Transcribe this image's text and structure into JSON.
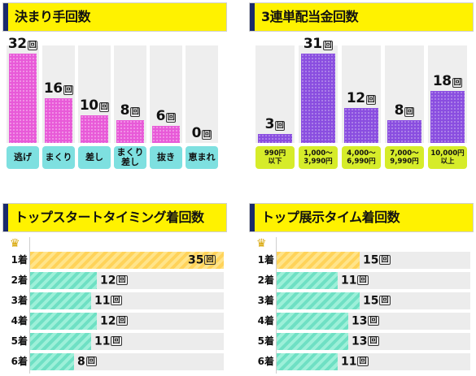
{
  "unit": "回",
  "kimarite": {
    "title": "決まり手回数",
    "items": [
      {
        "label": "逃げ",
        "value": "32",
        "num": 32
      },
      {
        "label": "まくり",
        "value": "16",
        "num": 16
      },
      {
        "label": "差し",
        "value": "10",
        "num": 10
      },
      {
        "label": "まくり\n差し",
        "value": "8",
        "num": 8
      },
      {
        "label": "抜き",
        "value": "6",
        "num": 6
      },
      {
        "label": "恵まれ",
        "value": "0",
        "num": 0
      }
    ]
  },
  "sanrentan": {
    "title": "3連単配当金回数",
    "items": [
      {
        "label": "990円\n以下",
        "value": "3",
        "num": 3
      },
      {
        "label": "1,000～\n3,990円",
        "value": "31",
        "num": 31
      },
      {
        "label": "4,000～\n6,990円",
        "value": "12",
        "num": 12
      },
      {
        "label": "7,000～\n9,990円",
        "value": "8",
        "num": 8
      },
      {
        "label": "10,000円\n以上",
        "value": "18",
        "num": 18
      }
    ]
  },
  "start_timing": {
    "title": "トップスタートタイミング着回数",
    "max": 35,
    "rows": [
      {
        "label": "1着",
        "value": "35",
        "num": 35
      },
      {
        "label": "2着",
        "value": "12",
        "num": 12
      },
      {
        "label": "3着",
        "value": "11",
        "num": 11
      },
      {
        "label": "4着",
        "value": "12",
        "num": 12
      },
      {
        "label": "5着",
        "value": "11",
        "num": 11
      },
      {
        "label": "6着",
        "value": "8",
        "num": 8
      }
    ]
  },
  "exhibition": {
    "title": "トップ展示タイム着回数",
    "max": 35,
    "rows": [
      {
        "label": "1着",
        "value": "15",
        "num": 15
      },
      {
        "label": "2着",
        "value": "11",
        "num": 11
      },
      {
        "label": "3着",
        "value": "15",
        "num": 15
      },
      {
        "label": "4着",
        "value": "13",
        "num": 13
      },
      {
        "label": "5着",
        "value": "13",
        "num": 13
      },
      {
        "label": "6着",
        "value": "11",
        "num": 11
      }
    ]
  },
  "icons": {
    "first_place": "crown-icon"
  },
  "colors": {
    "header": "#fff200",
    "header_accent": "#1a2a6c",
    "pink": "#e85ad8",
    "purple": "#8a4ee0",
    "teal": "#7ee0e0",
    "lime": "#d6ec2a",
    "gold": "#ffd35a",
    "mint": "#6fe0c4"
  }
}
